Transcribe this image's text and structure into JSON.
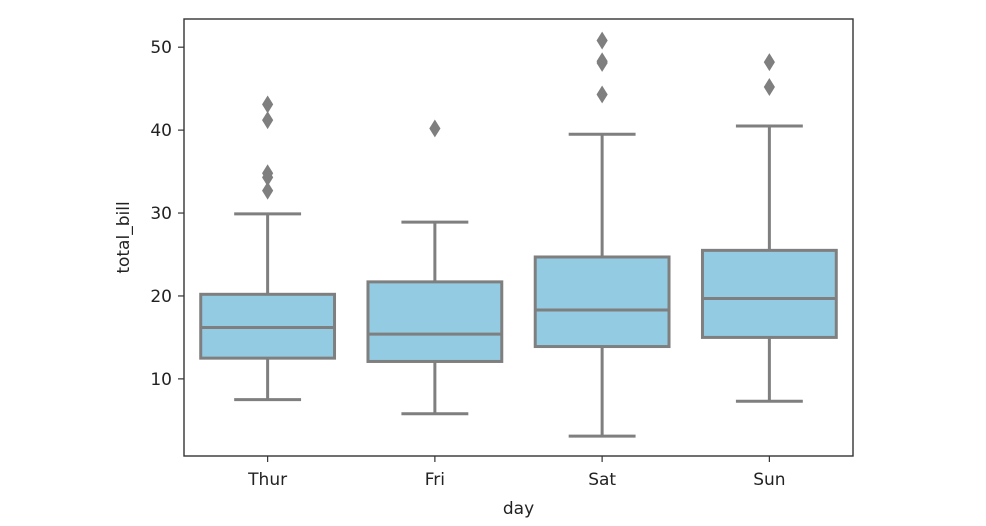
{
  "chart_data": {
    "type": "boxplot",
    "xlabel": "day",
    "ylabel": "total_bill",
    "categories": [
      "Thur",
      "Fri",
      "Sat",
      "Sun"
    ],
    "ylim": [
      0.7,
      53.4
    ],
    "yticks": [
      10,
      20,
      30,
      40,
      50
    ],
    "ytick_labels": [
      "10",
      "20",
      "30",
      "40",
      "50"
    ],
    "grid": false,
    "box_color": "#92cbe2",
    "line_color": "#7f7f7f",
    "boxes": [
      {
        "category": "Thur",
        "whisker_low": 7.5,
        "q1": 12.5,
        "median": 16.2,
        "q3": 20.2,
        "whisker_high": 29.9,
        "outliers": [
          32.7,
          34.3,
          34.8,
          41.2,
          43.1
        ]
      },
      {
        "category": "Fri",
        "whisker_low": 5.8,
        "q1": 12.1,
        "median": 15.4,
        "q3": 21.7,
        "whisker_high": 28.9,
        "outliers": [
          40.2
        ]
      },
      {
        "category": "Sat",
        "whisker_low": 3.1,
        "q1": 13.9,
        "median": 18.3,
        "q3": 24.7,
        "whisker_high": 39.5,
        "outliers": [
          44.3,
          48.1,
          48.3,
          50.8
        ]
      },
      {
        "category": "Sun",
        "whisker_low": 7.3,
        "q1": 15.0,
        "median": 19.7,
        "q3": 25.5,
        "whisker_high": 40.5,
        "outliers": [
          45.2,
          48.2
        ]
      }
    ]
  }
}
